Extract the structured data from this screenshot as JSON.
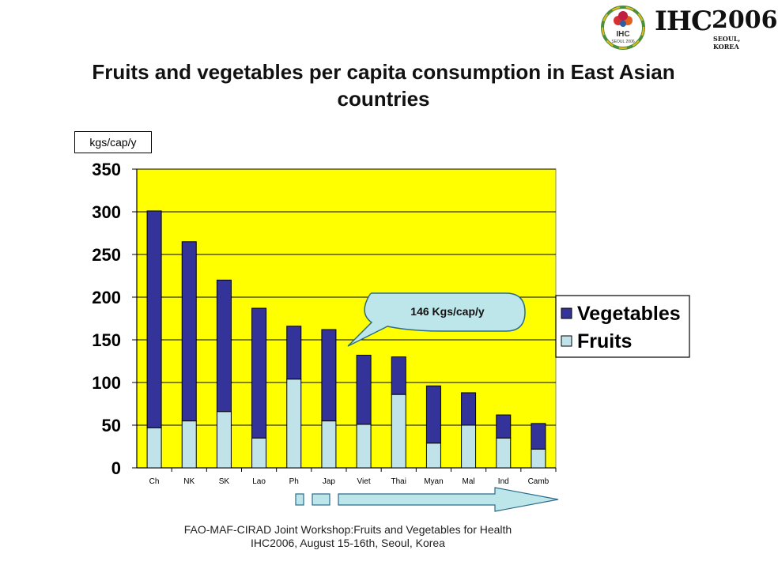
{
  "logo": {
    "text": "IHC",
    "year": "2006",
    "subtitle": "SEOUL, KOREA",
    "emblem_text": "IHC",
    "emblem_subtext": "SEOUL 2006"
  },
  "title": "Fruits and vegetables per capita consumption in East Asian countries",
  "unit_label": "kgs/cap/y",
  "callout": "146 Kgs/cap/y",
  "footer": {
    "line1": "FAO-MAF-CIRAD Joint Workshop:Fruits and Vegetables for Health",
    "line2": "IHC2006, August 15-16th, Seoul, Korea"
  },
  "colors": {
    "plot_bg": "#ffff00",
    "vegetables": "#333399",
    "fruits": "#bfe3e8",
    "callout": "#bde6ea",
    "arrow": "#bde6ea"
  },
  "chart_data": {
    "type": "bar",
    "stacked": true,
    "title": "Fruits and vegetables per capita consumption in East Asian countries",
    "ylabel": "kgs/cap/y",
    "xlabel": "",
    "ylim": [
      0,
      350
    ],
    "yticks": [
      0,
      50,
      100,
      150,
      200,
      250,
      300,
      350
    ],
    "grid": true,
    "legend_position": "right",
    "categories": [
      "Ch",
      "NK",
      "SK",
      "Lao",
      "Ph",
      "Jap",
      "Viet",
      "Thai",
      "Myan",
      "Mal",
      "Ind",
      "Camb"
    ],
    "series": [
      {
        "name": "Fruits",
        "values": [
          47,
          55,
          66,
          35,
          104,
          55,
          51,
          86,
          29,
          50,
          35,
          22
        ]
      },
      {
        "name": "Vegetables",
        "values": [
          254,
          210,
          154,
          152,
          62,
          107,
          81,
          44,
          67,
          38,
          27,
          30
        ]
      }
    ]
  }
}
